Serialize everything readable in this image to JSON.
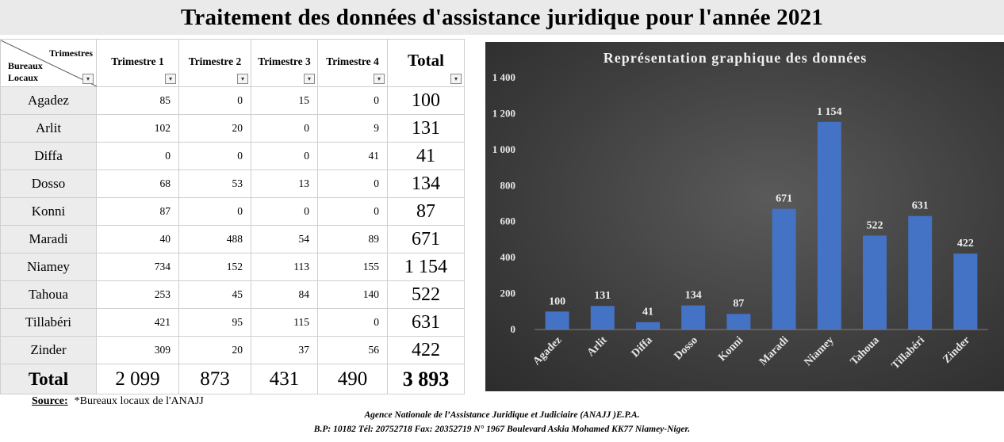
{
  "title": "Traitement des données d'assistance juridique pour l'année 2021",
  "table": {
    "corner_top": "Trimestres",
    "corner_bottom_1": "Bureaux",
    "corner_bottom_2": "Locaux",
    "headers": [
      "Trimestre 1",
      "Trimestre 2",
      "Trimestre 3",
      "Trimestre 4",
      "Total"
    ],
    "filter_icon": "▾",
    "rows": [
      {
        "name": "Agadez",
        "t1": "85",
        "t2": "0",
        "t3": "15",
        "t4": "0",
        "total": "100"
      },
      {
        "name": "Arlit",
        "t1": "102",
        "t2": "20",
        "t3": "0",
        "t4": "9",
        "total": "131"
      },
      {
        "name": "Diffa",
        "t1": "0",
        "t2": "0",
        "t3": "0",
        "t4": "41",
        "total": "41"
      },
      {
        "name": "Dosso",
        "t1": "68",
        "t2": "53",
        "t3": "13",
        "t4": "0",
        "total": "134"
      },
      {
        "name": "Konni",
        "t1": "87",
        "t2": "0",
        "t3": "0",
        "t4": "0",
        "total": "87"
      },
      {
        "name": "Maradi",
        "t1": "40",
        "t2": "488",
        "t3": "54",
        "t4": "89",
        "total": "671"
      },
      {
        "name": "Niamey",
        "t1": "734",
        "t2": "152",
        "t3": "113",
        "t4": "155",
        "total": "1 154"
      },
      {
        "name": "Tahoua",
        "t1": "253",
        "t2": "45",
        "t3": "84",
        "t4": "140",
        "total": "522"
      },
      {
        "name": "Tillabéri",
        "t1": "421",
        "t2": "95",
        "t3": "115",
        "t4": "0",
        "total": "631"
      },
      {
        "name": "Zinder",
        "t1": "309",
        "t2": "20",
        "t3": "37",
        "t4": "56",
        "total": "422"
      }
    ],
    "total_row": {
      "name": "Total",
      "t1": "2 099",
      "t2": "873",
      "t3": "431",
      "t4": "490",
      "total": "3 893"
    }
  },
  "chart_data": {
    "type": "bar",
    "title": "Représentation graphique des données",
    "categories": [
      "Agadez",
      "Arlit",
      "Diffa",
      "Dosso",
      "Konni",
      "Maradi",
      "Niamey",
      "Tahoua",
      "Tillabéri",
      "Zinder"
    ],
    "values": [
      100,
      131,
      41,
      134,
      87,
      671,
      1154,
      522,
      631,
      422
    ],
    "value_labels": [
      "100",
      "131",
      "41",
      "134",
      "87",
      "671",
      "1 154",
      "522",
      "631",
      "422"
    ],
    "yticks": [
      "0",
      "200",
      "400",
      "600",
      "800",
      "1 000",
      "1 200",
      "1 400"
    ],
    "ylim": [
      0,
      1400
    ],
    "grid": false,
    "legend": "none",
    "bar_color": "#4472c4",
    "background_color": "#404040"
  },
  "source": {
    "label": "Source:",
    "text": "*Bureaux locaux de l'ANAJJ"
  },
  "footer": {
    "line1": "Agence Nationale de l’Assistance Juridique et Judiciaire (ANAJJ )E.P.A.",
    "line2": "B.P: 10182 Tél: 20752718 Fax: 20352719 N° 1967 Boulevard Askia Mohamed KK77 Niamey-Niger."
  }
}
